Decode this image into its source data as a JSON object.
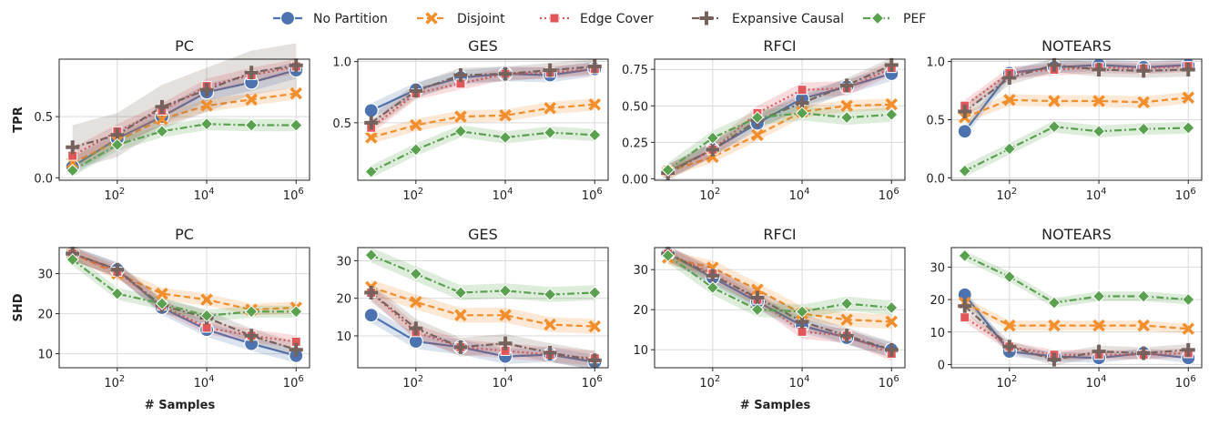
{
  "legend": {
    "items": [
      {
        "name": "No Partition",
        "color": "#4c72b0",
        "marker": "circle",
        "dash": "solid"
      },
      {
        "name": "Disjoint",
        "color": "#f28e2b",
        "marker": "x",
        "dash": "dashed"
      },
      {
        "name": "Edge Cover",
        "color": "#e15759",
        "marker": "square",
        "dash": "dotted"
      },
      {
        "name": "Expansive Causal",
        "color": "#76625c",
        "marker": "plus",
        "dash": "dashdot"
      },
      {
        "name": "PEF",
        "color": "#59a14f",
        "marker": "diamond",
        "dash": "dashdot"
      }
    ]
  },
  "chart_data": [
    {
      "type": "line",
      "title": "PC",
      "xlabel": "",
      "ylabel": "TPR",
      "xscale": "log",
      "x": [
        10,
        100,
        1000,
        10000,
        100000,
        1000000
      ],
      "xticks": [
        {
          "v": 100,
          "label": "10^2"
        },
        {
          "v": 10000,
          "label": "10^4"
        },
        {
          "v": 1000000,
          "label": "10^6"
        }
      ],
      "ylim": [
        -0.02,
        0.97
      ],
      "yticks": [
        {
          "v": 0.0,
          "label": "0.0"
        },
        {
          "v": 0.5,
          "label": "0.5"
        }
      ],
      "series": [
        {
          "name": "No Partition",
          "values": [
            0.09,
            0.32,
            0.5,
            0.7,
            0.78,
            0.88
          ],
          "band": 0.07
        },
        {
          "name": "Disjoint",
          "values": [
            0.12,
            0.3,
            0.48,
            0.59,
            0.64,
            0.69
          ],
          "band": 0.05
        },
        {
          "name": "Edge Cover",
          "values": [
            0.18,
            0.38,
            0.55,
            0.75,
            0.84,
            0.91
          ],
          "band": 0.06
        },
        {
          "name": "Expansive Causal",
          "values": [
            0.25,
            0.35,
            0.58,
            0.72,
            0.86,
            0.92
          ],
          "band": 0.18
        },
        {
          "name": "PEF",
          "values": [
            0.06,
            0.27,
            0.38,
            0.44,
            0.43,
            0.43
          ],
          "band": 0.05
        }
      ]
    },
    {
      "type": "line",
      "title": "GES",
      "xlabel": "",
      "ylabel": "",
      "xscale": "log",
      "x": [
        10,
        100,
        1000,
        10000,
        100000,
        1000000
      ],
      "xticks": [
        {
          "v": 100,
          "label": "10^2"
        },
        {
          "v": 10000,
          "label": "10^4"
        },
        {
          "v": 1000000,
          "label": "10^6"
        }
      ],
      "ylim": [
        0.03,
        1.02
      ],
      "yticks": [
        {
          "v": 0.5,
          "label": "0.5"
        },
        {
          "v": 1.0,
          "label": "1.0"
        }
      ],
      "series": [
        {
          "name": "No Partition",
          "values": [
            0.6,
            0.77,
            0.87,
            0.9,
            0.89,
            0.94
          ],
          "band": 0.06
        },
        {
          "name": "Disjoint",
          "values": [
            0.38,
            0.48,
            0.55,
            0.56,
            0.62,
            0.65
          ],
          "band": 0.05
        },
        {
          "name": "Edge Cover",
          "values": [
            0.46,
            0.74,
            0.82,
            0.9,
            0.91,
            0.94
          ],
          "band": 0.05
        },
        {
          "name": "Expansive Causal",
          "values": [
            0.5,
            0.76,
            0.89,
            0.9,
            0.93,
            0.96
          ],
          "band": 0.06
        },
        {
          "name": "PEF",
          "values": [
            0.1,
            0.28,
            0.43,
            0.38,
            0.42,
            0.4
          ],
          "band": 0.05
        }
      ]
    },
    {
      "type": "line",
      "title": "RFCI",
      "xlabel": "",
      "ylabel": "",
      "xscale": "log",
      "x": [
        10,
        100,
        1000,
        10000,
        100000,
        1000000
      ],
      "xticks": [
        {
          "v": 100,
          "label": "10^2"
        },
        {
          "v": 10000,
          "label": "10^4"
        },
        {
          "v": 1000000,
          "label": "10^6"
        }
      ],
      "ylim": [
        -0.01,
        0.82
      ],
      "yticks": [
        {
          "v": 0.0,
          "label": "0.00"
        },
        {
          "v": 0.25,
          "label": "0.25"
        },
        {
          "v": 0.5,
          "label": "0.50"
        },
        {
          "v": 0.75,
          "label": "0.75"
        }
      ],
      "series": [
        {
          "name": "No Partition",
          "values": [
            0.05,
            0.2,
            0.38,
            0.55,
            0.63,
            0.72
          ],
          "band": 0.05
        },
        {
          "name": "Disjoint",
          "values": [
            0.05,
            0.15,
            0.3,
            0.46,
            0.5,
            0.51
          ],
          "band": 0.04
        },
        {
          "name": "Edge Cover",
          "values": [
            0.05,
            0.2,
            0.45,
            0.61,
            0.62,
            0.76
          ],
          "band": 0.05
        },
        {
          "name": "Expansive Causal",
          "values": [
            0.04,
            0.2,
            0.4,
            0.52,
            0.64,
            0.78
          ],
          "band": 0.05
        },
        {
          "name": "PEF",
          "values": [
            0.06,
            0.28,
            0.42,
            0.45,
            0.42,
            0.44
          ],
          "band": 0.05
        }
      ]
    },
    {
      "type": "line",
      "title": "NOTEARS",
      "xlabel": "",
      "ylabel": "",
      "xscale": "log",
      "x": [
        10,
        100,
        1000,
        10000,
        100000,
        1000000
      ],
      "xticks": [
        {
          "v": 100,
          "label": "10^2"
        },
        {
          "v": 10000,
          "label": "10^4"
        },
        {
          "v": 1000000,
          "label": "10^6"
        }
      ],
      "ylim": [
        -0.02,
        1.02
      ],
      "yticks": [
        {
          "v": 0.0,
          "label": "0.0"
        },
        {
          "v": 0.5,
          "label": "0.5"
        },
        {
          "v": 1.0,
          "label": "1.0"
        }
      ],
      "series": [
        {
          "name": "No Partition",
          "values": [
            0.4,
            0.9,
            0.95,
            0.97,
            0.95,
            0.97
          ],
          "band": 0.05
        },
        {
          "name": "Disjoint",
          "values": [
            0.52,
            0.67,
            0.66,
            0.66,
            0.65,
            0.69
          ],
          "band": 0.05
        },
        {
          "name": "Edge Cover",
          "values": [
            0.62,
            0.9,
            0.93,
            0.95,
            0.94,
            0.96
          ],
          "band": 0.05
        },
        {
          "name": "Expansive Causal",
          "values": [
            0.57,
            0.86,
            0.97,
            0.93,
            0.92,
            0.93
          ],
          "band": 0.06
        },
        {
          "name": "PEF",
          "values": [
            0.06,
            0.25,
            0.44,
            0.4,
            0.42,
            0.43
          ],
          "band": 0.05
        }
      ]
    },
    {
      "type": "line",
      "title": "PC",
      "xlabel": "# Samples",
      "ylabel": "SHD",
      "xscale": "log",
      "x": [
        10,
        100,
        1000,
        10000,
        100000,
        1000000
      ],
      "xticks": [
        {
          "v": 100,
          "label": "10^2"
        },
        {
          "v": 10000,
          "label": "10^4"
        },
        {
          "v": 1000000,
          "label": "10^6"
        }
      ],
      "ylim": [
        6.5,
        36.5
      ],
      "yticks": [
        {
          "v": 10,
          "label": "10"
        },
        {
          "v": 20,
          "label": "20"
        },
        {
          "v": 30,
          "label": "30"
        }
      ],
      "series": [
        {
          "name": "No Partition",
          "values": [
            35,
            31,
            21.5,
            16,
            12.5,
            9.5
          ],
          "band": 1.8
        },
        {
          "name": "Disjoint",
          "values": [
            35,
            30,
            25,
            23.5,
            21,
            21.5
          ],
          "band": 1.5
        },
        {
          "name": "Edge Cover",
          "values": [
            35,
            30.5,
            22,
            16.5,
            14.5,
            13
          ],
          "band": 1.6
        },
        {
          "name": "Expansive Causal",
          "values": [
            35,
            31,
            22,
            19,
            14.5,
            11
          ],
          "band": 1.8
        },
        {
          "name": "PEF",
          "values": [
            33.5,
            25,
            22.5,
            19.5,
            20.5,
            20.5
          ],
          "band": 1.5
        }
      ]
    },
    {
      "type": "line",
      "title": "GES",
      "xlabel": "",
      "ylabel": "",
      "xscale": "log",
      "x": [
        10,
        100,
        1000,
        10000,
        100000,
        1000000
      ],
      "xticks": [
        {
          "v": 100,
          "label": "10^2"
        },
        {
          "v": 10000,
          "label": "10^4"
        },
        {
          "v": 1000000,
          "label": "10^6"
        }
      ],
      "ylim": [
        1.5,
        33.5
      ],
      "yticks": [
        {
          "v": 10,
          "label": "10"
        },
        {
          "v": 20,
          "label": "20"
        },
        {
          "v": 30,
          "label": "30"
        }
      ],
      "series": [
        {
          "name": "No Partition",
          "values": [
            15.5,
            8.5,
            7,
            4.5,
            5,
            3
          ],
          "band": 2
        },
        {
          "name": "Disjoint",
          "values": [
            23,
            19,
            15.5,
            15.5,
            13,
            12.5
          ],
          "band": 2
        },
        {
          "name": "Edge Cover",
          "values": [
            21.5,
            11,
            7,
            6,
            5,
            4
          ],
          "band": 2
        },
        {
          "name": "Expansive Causal",
          "values": [
            21.5,
            12,
            7,
            8,
            5.5,
            3.5
          ],
          "band": 2.5
        },
        {
          "name": "PEF",
          "values": [
            31.5,
            26.5,
            21.5,
            22,
            21,
            21.5
          ],
          "band": 2
        }
      ]
    },
    {
      "type": "line",
      "title": "RFCI",
      "xlabel": "# Samples",
      "ylabel": "",
      "xscale": "log",
      "x": [
        10,
        100,
        1000,
        10000,
        100000,
        1000000
      ],
      "xticks": [
        {
          "v": 100,
          "label": "10^2"
        },
        {
          "v": 10000,
          "label": "10^4"
        },
        {
          "v": 1000000,
          "label": "10^6"
        }
      ],
      "ylim": [
        5.5,
        35.5
      ],
      "yticks": [
        {
          "v": 10,
          "label": "10"
        },
        {
          "v": 20,
          "label": "20"
        },
        {
          "v": 30,
          "label": "30"
        }
      ],
      "series": [
        {
          "name": "No Partition",
          "values": [
            34,
            28,
            22,
            16,
            13,
            10
          ],
          "band": 1.8
        },
        {
          "name": "Disjoint",
          "values": [
            33,
            30.5,
            25,
            19,
            17.5,
            17
          ],
          "band": 1.8
        },
        {
          "name": "Edge Cover",
          "values": [
            34,
            29,
            22.5,
            14.5,
            13.5,
            9
          ],
          "band": 1.8
        },
        {
          "name": "Expansive Causal",
          "values": [
            34,
            28.5,
            23,
            17,
            13.5,
            10
          ],
          "band": 2
        },
        {
          "name": "PEF",
          "values": [
            33.5,
            25.5,
            20,
            19.5,
            21.5,
            20.5
          ],
          "band": 1.8
        }
      ]
    },
    {
      "type": "line",
      "title": "NOTEARS",
      "xlabel": "",
      "ylabel": "",
      "xscale": "log",
      "x": [
        10,
        100,
        1000,
        10000,
        100000,
        1000000
      ],
      "xticks": [
        {
          "v": 100,
          "label": "10^2"
        },
        {
          "v": 10000,
          "label": "10^4"
        },
        {
          "v": 1000000,
          "label": "10^6"
        }
      ],
      "ylim": [
        -1,
        36
      ],
      "yticks": [
        {
          "v": 0,
          "label": "0"
        },
        {
          "v": 10,
          "label": "10"
        },
        {
          "v": 20,
          "label": "20"
        },
        {
          "v": 30,
          "label": "30"
        }
      ],
      "series": [
        {
          "name": "No Partition",
          "values": [
            21.5,
            4,
            2.5,
            2,
            3.5,
            2
          ],
          "band": 1.5
        },
        {
          "name": "Disjoint",
          "values": [
            19,
            12,
            12,
            12,
            12,
            11
          ],
          "band": 1.5
        },
        {
          "name": "Edge Cover",
          "values": [
            14.5,
            5.5,
            3,
            3,
            3,
            3.5
          ],
          "band": 1.5
        },
        {
          "name": "Expansive Causal",
          "values": [
            18,
            5.5,
            1.5,
            4,
            3.5,
            4.5
          ],
          "band": 1.8
        },
        {
          "name": "PEF",
          "values": [
            33.5,
            27,
            19,
            21,
            21,
            20
          ],
          "band": 1.5
        }
      ]
    }
  ]
}
